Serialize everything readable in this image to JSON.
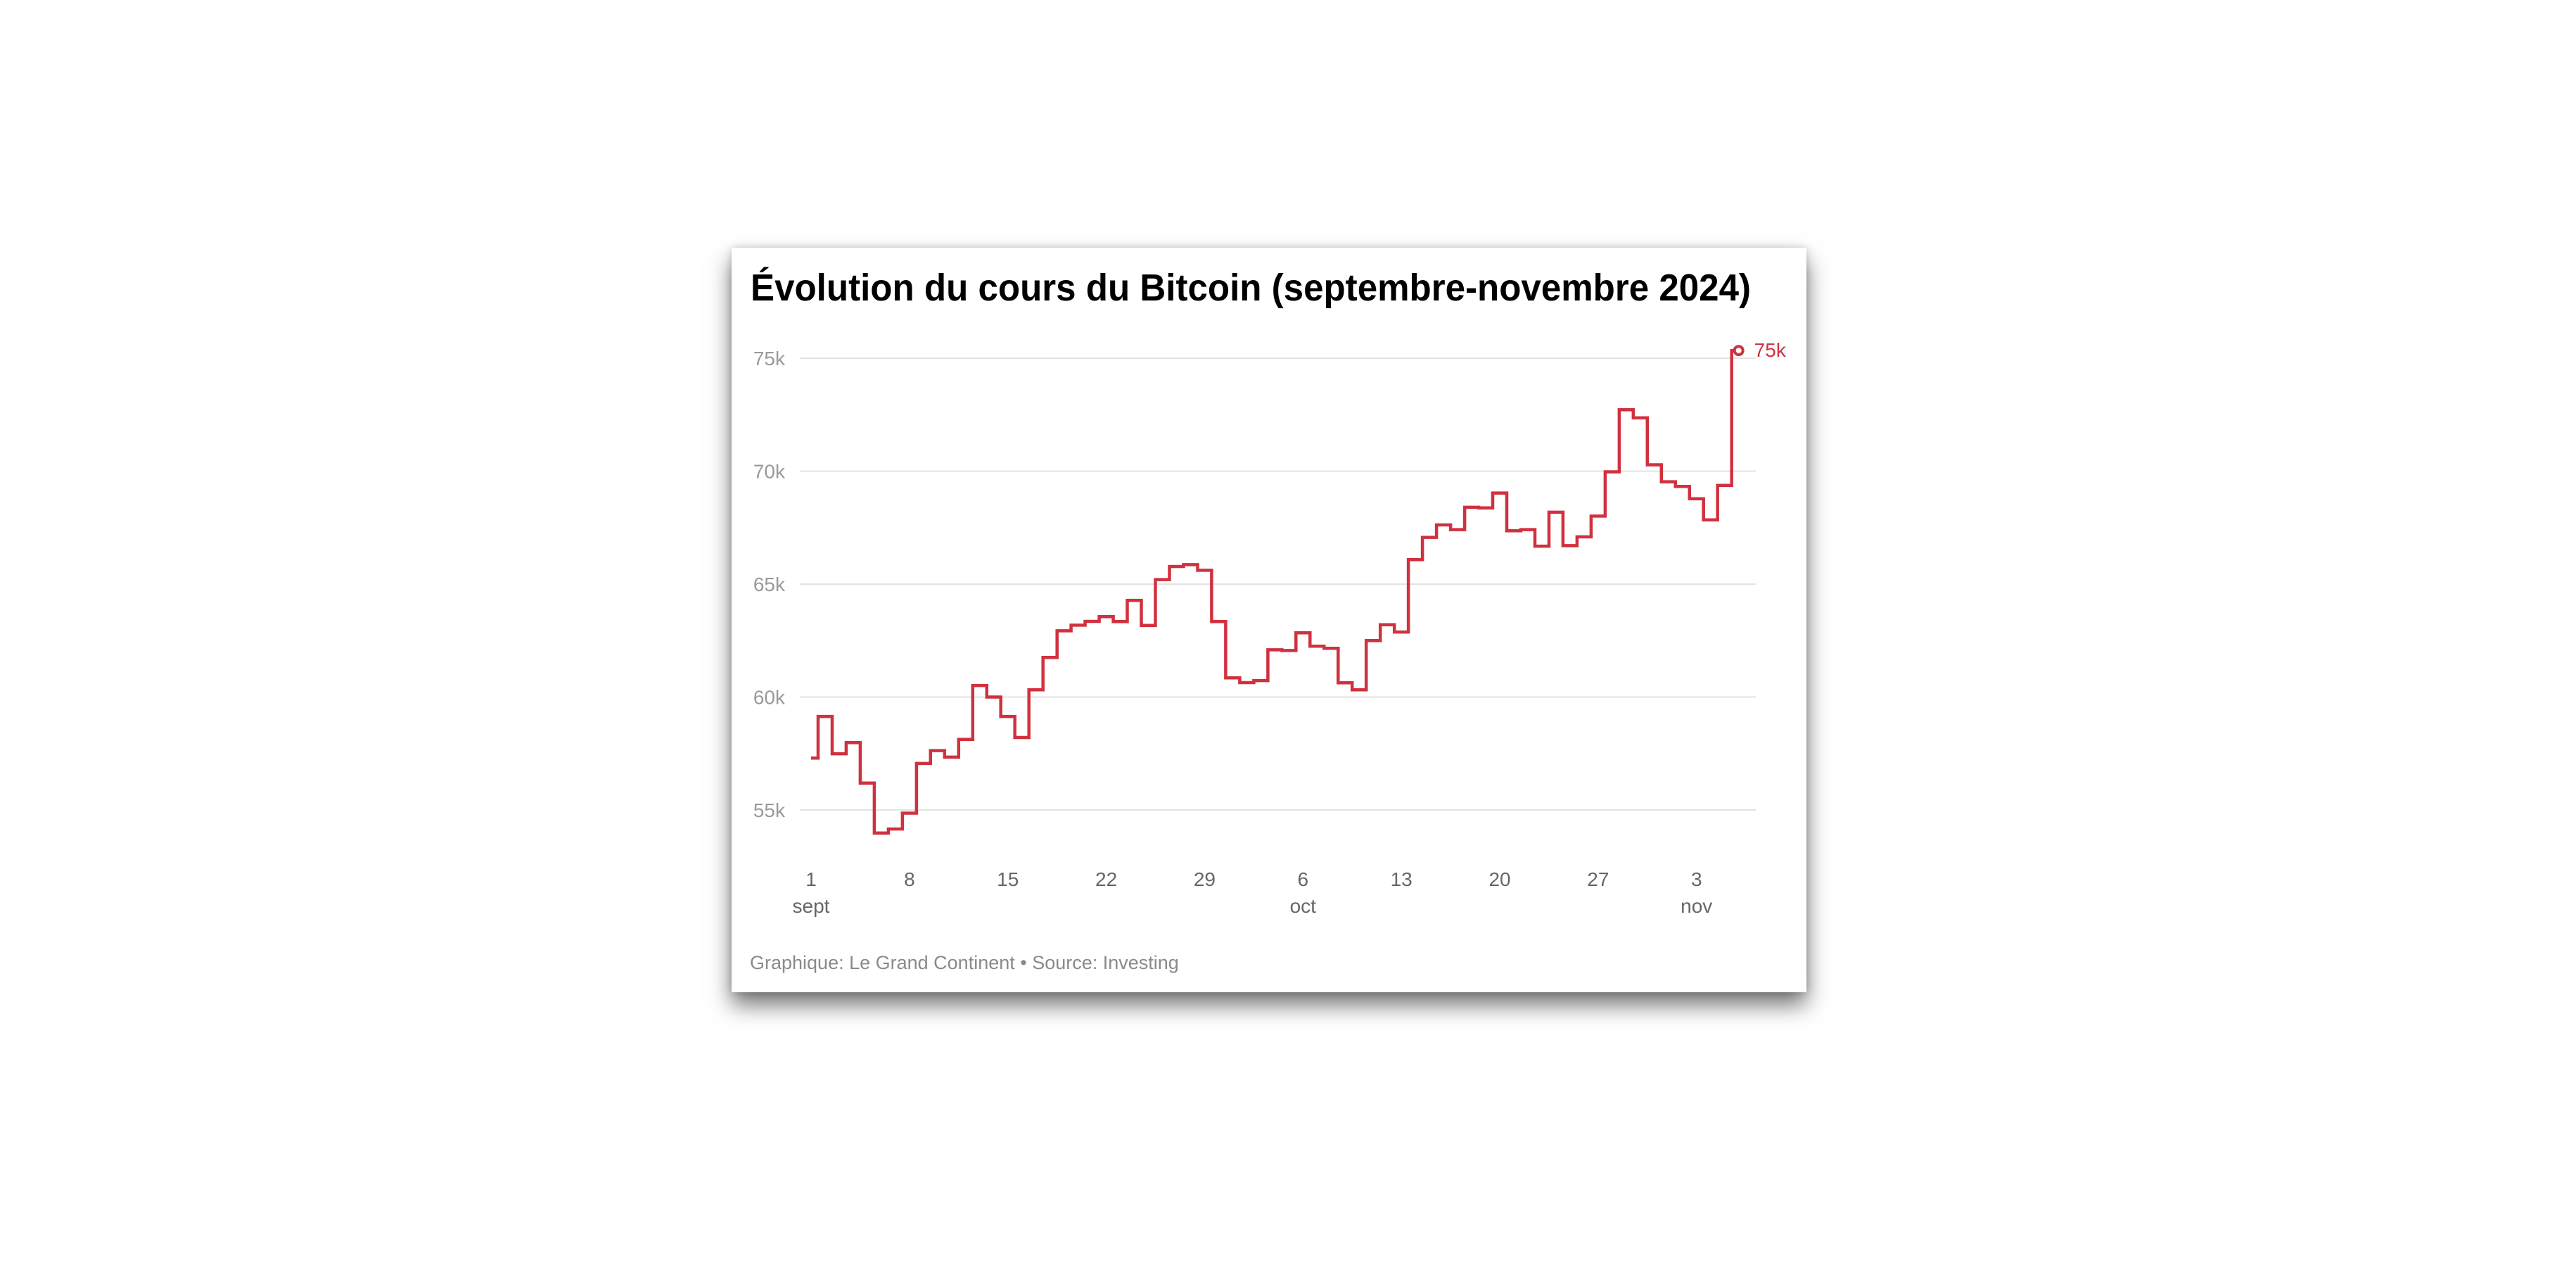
{
  "chart_data": {
    "type": "line",
    "step": true,
    "title": "Évolution du cours du Bitcoin (septembre-novembre 2024)",
    "footer": "Graphique: Le Grand Continent • Source: Investing",
    "xlabel": "",
    "ylabel": "",
    "ylim": [
      53.5,
      75.5
    ],
    "yticks": [
      {
        "value": 55,
        "label": "55k"
      },
      {
        "value": 60,
        "label": "60k"
      },
      {
        "value": 65,
        "label": "65k"
      },
      {
        "value": 70,
        "label": "70k"
      },
      {
        "value": 75,
        "label": "75k"
      }
    ],
    "xticks": [
      {
        "day": 1,
        "label": "1",
        "month": "sept"
      },
      {
        "day": 8,
        "label": "8"
      },
      {
        "day": 15,
        "label": "15"
      },
      {
        "day": 22,
        "label": "22"
      },
      {
        "day": 29,
        "label": "29"
      },
      {
        "day": 36,
        "label": "6",
        "month": "oct"
      },
      {
        "day": 43,
        "label": "13"
      },
      {
        "day": 50,
        "label": "20"
      },
      {
        "day": 57,
        "label": "27"
      },
      {
        "day": 64,
        "label": "3",
        "month": "nov"
      }
    ],
    "x_start": "2024-09-01",
    "x_unit": "day index (1 = 1 sept)",
    "y_unit": "thousand USD",
    "grid": true,
    "color": "#d0313f",
    "end_label": "75k",
    "series": [
      {
        "name": "Bitcoin",
        "values": [
          57.3,
          59.14,
          57.49,
          57.98,
          56.19,
          53.98,
          54.16,
          54.86,
          57.06,
          57.63,
          57.34,
          58.12,
          60.51,
          60.0,
          59.14,
          58.21,
          60.32,
          61.75,
          62.93,
          63.18,
          63.35,
          63.56,
          63.34,
          64.28,
          63.17,
          65.2,
          65.78,
          65.86,
          65.61,
          63.34,
          60.85,
          60.64,
          60.73,
          62.09,
          62.06,
          62.84,
          62.25,
          62.16,
          60.63,
          60.32,
          62.5,
          63.2,
          62.88,
          66.08,
          67.07,
          67.62,
          67.41,
          68.4,
          68.37,
          69.03,
          67.36,
          67.41,
          66.68,
          68.18,
          66.7,
          67.09,
          68.01,
          69.97,
          72.72,
          72.36,
          70.28,
          69.53,
          69.32,
          68.78,
          67.84,
          69.37,
          75.34
        ]
      }
    ]
  }
}
